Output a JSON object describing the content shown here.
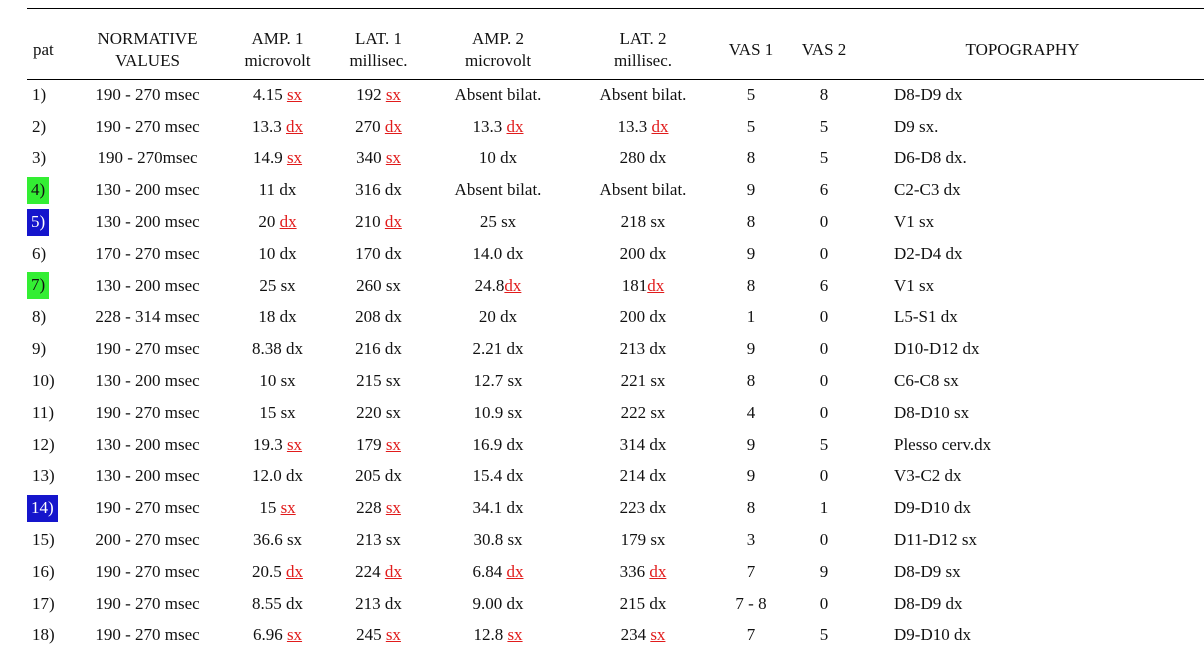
{
  "header": {
    "pat": "pat",
    "normative": [
      "NORMATIVE",
      "VALUES"
    ],
    "amp1": [
      "AMP. 1",
      "microvolt"
    ],
    "lat1": [
      "LAT. 1",
      "millisec."
    ],
    "amp2": [
      "AMP. 2",
      "microvolt"
    ],
    "lat2": [
      "LAT. 2",
      "millisec."
    ],
    "vas1": "VAS 1",
    "vas2": "VAS 2",
    "topography": "TOPOGRAPHY"
  },
  "colors": {
    "highlight_green": "#33ee33",
    "highlight_blue": "#1515cc",
    "link_red": "#e11b1b"
  },
  "rows": [
    {
      "pat": "1)",
      "highlight": null,
      "norm": "190 - 270 msec",
      "amp1": "4.15",
      "amp1_side": "sx",
      "amp1_red": true,
      "lat1": "192",
      "lat1_side": "sx",
      "lat1_red": true,
      "amp2": "Absent bilat.",
      "amp2_side": "",
      "amp2_red": false,
      "lat2": "Absent bilat.",
      "lat2_side": "",
      "lat2_red": false,
      "vas1": "5",
      "vas2": "8",
      "topo": "D8-D9 dx"
    },
    {
      "pat": "2)",
      "highlight": null,
      "norm": "190 - 270 msec",
      "amp1": "13.3",
      "amp1_side": "dx",
      "amp1_red": true,
      "lat1": "270",
      "lat1_side": "dx",
      "lat1_red": true,
      "amp2": "13.3",
      "amp2_side": "dx",
      "amp2_red": true,
      "lat2": "13.3",
      "lat2_side": "dx",
      "lat2_red": true,
      "vas1": "5",
      "vas2": "5",
      "topo": "D9 sx."
    },
    {
      "pat": "3)",
      "highlight": null,
      "norm": "190 - 270msec",
      "amp1": "14.9",
      "amp1_side": "sx",
      "amp1_red": true,
      "lat1": "340",
      "lat1_side": "sx",
      "lat1_red": true,
      "amp2": "10",
      "amp2_side": "dx",
      "amp2_red": false,
      "lat2": "280",
      "lat2_side": "dx",
      "lat2_red": false,
      "vas1": "8",
      "vas2": "5",
      "topo": "D6-D8 dx."
    },
    {
      "pat": "4)",
      "highlight": "green",
      "norm": "130 - 200 msec",
      "amp1": "11",
      "amp1_side": "dx",
      "amp1_red": false,
      "lat1": "316",
      "lat1_side": "dx",
      "lat1_red": false,
      "amp2": "Absent bilat.",
      "amp2_side": "",
      "amp2_red": false,
      "lat2": "Absent bilat.",
      "lat2_side": "",
      "lat2_red": false,
      "vas1": "9",
      "vas2": "6",
      "topo": "C2-C3 dx"
    },
    {
      "pat": "5)",
      "highlight": "blue",
      "norm": "130 - 200 msec",
      "amp1": "20",
      "amp1_side": "dx",
      "amp1_red": true,
      "lat1": "210",
      "lat1_side": "dx",
      "lat1_red": true,
      "amp2": "25",
      "amp2_side": "sx",
      "amp2_red": false,
      "lat2": "218",
      "lat2_side": "sx",
      "lat2_red": false,
      "vas1": "8",
      "vas2": "0",
      "topo": "V1 sx"
    },
    {
      "pat": "6)",
      "highlight": null,
      "norm": "170 - 270 msec",
      "amp1": "10",
      "amp1_side": "dx",
      "amp1_red": false,
      "lat1": "170",
      "lat1_side": "dx",
      "lat1_red": false,
      "amp2": "14.0",
      "amp2_side": "dx",
      "amp2_red": false,
      "lat2": "200",
      "lat2_side": "dx",
      "lat2_red": false,
      "vas1": "9",
      "vas2": "0",
      "topo": "D2-D4 dx"
    },
    {
      "pat": "7)",
      "highlight": "green",
      "norm": "130 - 200 msec",
      "amp1": "25",
      "amp1_side": "sx",
      "amp1_red": false,
      "lat1": "260",
      "lat1_side": "sx",
      "lat1_red": false,
      "amp2": "24.8",
      "amp2_side": "dx",
      "amp2_red": true,
      "amp2_nospace": true,
      "lat2": "181",
      "lat2_side": "dx",
      "lat2_red": true,
      "lat2_nospace": true,
      "vas1": "8",
      "vas2": "6",
      "topo": "V1 sx"
    },
    {
      "pat": "8)",
      "highlight": null,
      "norm": "228 - 314 msec",
      "amp1": "18",
      "amp1_side": "dx",
      "amp1_red": false,
      "lat1": "208",
      "lat1_side": "dx",
      "lat1_red": false,
      "amp2": "20",
      "amp2_side": "dx",
      "amp2_red": false,
      "lat2": "200",
      "lat2_side": "dx",
      "lat2_red": false,
      "vas1": "1",
      "vas2": "0",
      "topo": "L5-S1 dx"
    },
    {
      "pat": "9)",
      "highlight": null,
      "norm": "190 - 270 msec",
      "amp1": "8.38",
      "amp1_side": "dx",
      "amp1_red": false,
      "lat1": "216",
      "lat1_side": "dx",
      "lat1_red": false,
      "amp2": "2.21",
      "amp2_side": "dx",
      "amp2_red": false,
      "lat2": "213",
      "lat2_side": "dx",
      "lat2_red": false,
      "vas1": "9",
      "vas2": "0",
      "topo": "D10-D12 dx"
    },
    {
      "pat": "10)",
      "highlight": null,
      "norm": "130 - 200 msec",
      "amp1": "10",
      "amp1_side": "sx",
      "amp1_red": false,
      "lat1": "215",
      "lat1_side": "sx",
      "lat1_red": false,
      "amp2": "12.7",
      "amp2_side": "sx",
      "amp2_red": false,
      "lat2": "221",
      "lat2_side": "sx",
      "lat2_red": false,
      "vas1": "8",
      "vas2": "0",
      "topo": "C6-C8 sx"
    },
    {
      "pat": "11)",
      "highlight": null,
      "norm": "190 - 270 msec",
      "amp1": "15",
      "amp1_side": "sx",
      "amp1_red": false,
      "lat1": "220",
      "lat1_side": "sx",
      "lat1_red": false,
      "amp2": "10.9",
      "amp2_side": "sx",
      "amp2_red": false,
      "lat2": "222",
      "lat2_side": "sx",
      "lat2_red": false,
      "vas1": "4",
      "vas2": "0",
      "topo": "D8-D10 sx"
    },
    {
      "pat": "12)",
      "highlight": null,
      "norm": "130 - 200 msec",
      "amp1": "19.3",
      "amp1_side": "sx",
      "amp1_red": true,
      "lat1": "179",
      "lat1_side": "sx",
      "lat1_red": true,
      "amp2": "16.9",
      "amp2_side": "dx",
      "amp2_red": false,
      "lat2": "314",
      "lat2_side": "dx",
      "lat2_red": false,
      "vas1": "9",
      "vas2": "5",
      "topo": "Plesso cerv.dx"
    },
    {
      "pat": "13)",
      "highlight": null,
      "norm": "130 - 200 msec",
      "amp1": "12.0",
      "amp1_side": "dx",
      "amp1_red": false,
      "lat1": "205",
      "lat1_side": "dx",
      "lat1_red": false,
      "amp2": "15.4",
      "amp2_side": "dx",
      "amp2_red": false,
      "lat2": "214",
      "lat2_side": "dx",
      "lat2_red": false,
      "vas1": "9",
      "vas2": "0",
      "topo": "V3-C2 dx"
    },
    {
      "pat": "14)",
      "highlight": "blue",
      "norm": "190 - 270 msec",
      "amp1": "15",
      "amp1_side": "sx",
      "amp1_red": true,
      "lat1": "228",
      "lat1_side": "sx",
      "lat1_red": true,
      "amp2": "34.1",
      "amp2_side": "dx",
      "amp2_red": false,
      "lat2": "223",
      "lat2_side": "dx",
      "lat2_red": false,
      "vas1": "8",
      "vas2": "1",
      "topo": "D9-D10 dx"
    },
    {
      "pat": "15)",
      "highlight": null,
      "norm": "200 - 270 msec",
      "amp1": "36.6",
      "amp1_side": "sx",
      "amp1_red": false,
      "lat1": "213",
      "lat1_side": "sx",
      "lat1_red": false,
      "amp2": "30.8",
      "amp2_side": "sx",
      "amp2_red": false,
      "lat2": "179",
      "lat2_side": "sx",
      "lat2_red": false,
      "vas1": "3",
      "vas2": "0",
      "topo": "D11-D12 sx"
    },
    {
      "pat": "16)",
      "highlight": null,
      "norm": "190 - 270 msec",
      "amp1": "20.5",
      "amp1_side": "dx",
      "amp1_red": true,
      "lat1": "224",
      "lat1_side": "dx",
      "lat1_red": true,
      "amp2": "6.84",
      "amp2_side": "dx",
      "amp2_red": true,
      "lat2": "336",
      "lat2_side": "dx",
      "lat2_red": true,
      "vas1": "7",
      "vas2": "9",
      "topo": "D8-D9 sx"
    },
    {
      "pat": "17)",
      "highlight": null,
      "norm": "190 - 270 msec",
      "amp1": "8.55",
      "amp1_side": "dx",
      "amp1_red": false,
      "lat1": "213",
      "lat1_side": "dx",
      "lat1_red": false,
      "amp2": "9.00",
      "amp2_side": "dx",
      "amp2_red": false,
      "lat2": "215",
      "lat2_side": "dx",
      "lat2_red": false,
      "vas1": "7 - 8",
      "vas2": "0",
      "topo": "D8-D9 dx"
    },
    {
      "pat": "18)",
      "highlight": null,
      "norm": "190 - 270 msec",
      "amp1": "6.96",
      "amp1_side": "sx",
      "amp1_red": true,
      "lat1": "245",
      "lat1_side": "sx",
      "lat1_red": true,
      "amp2": "12.8",
      "amp2_side": "sx",
      "amp2_red": true,
      "lat2": "234",
      "lat2_side": "sx",
      "lat2_red": true,
      "vas1": "7",
      "vas2": "5",
      "topo": "D9-D10 dx"
    }
  ]
}
